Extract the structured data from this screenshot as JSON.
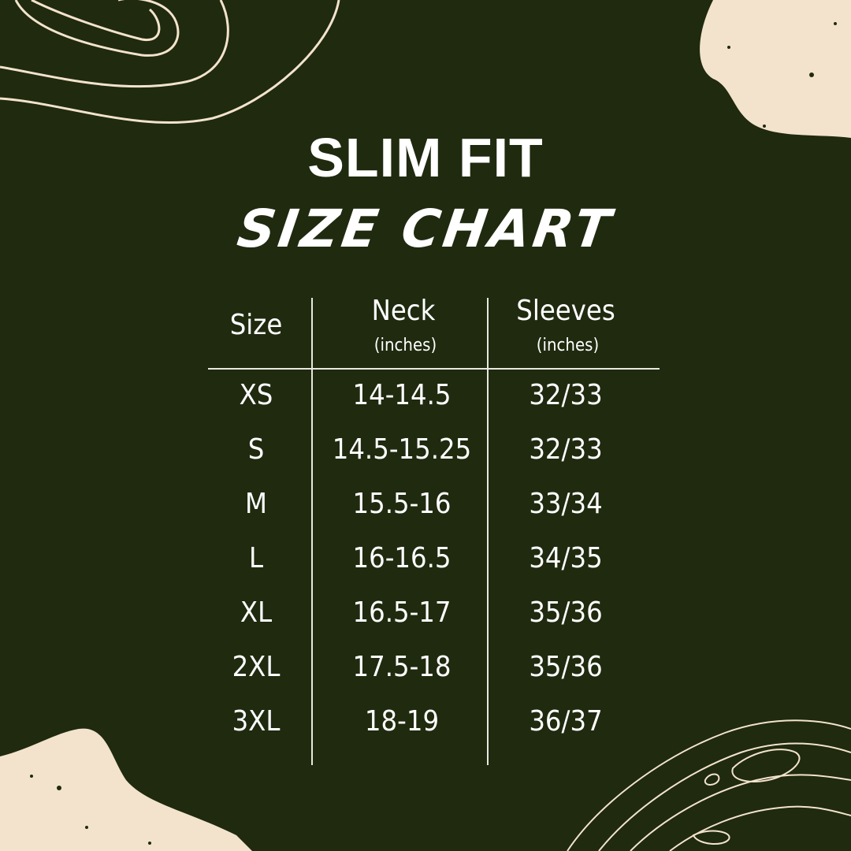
{
  "title": {
    "line1": "SLIM FIT",
    "line2": "SIZE CHART"
  },
  "colors": {
    "background": "#1f2a0f",
    "accent": "#f3e3cc",
    "text": "#ffffff"
  },
  "table": {
    "headers": [
      {
        "label": "Size",
        "unit": ""
      },
      {
        "label": "Neck",
        "unit": "(inches)"
      },
      {
        "label": "Sleeves",
        "unit": "(inches)"
      }
    ],
    "rows": [
      [
        "XS",
        "14-14.5",
        "32/33"
      ],
      [
        "S",
        "14.5-15.25",
        "32/33"
      ],
      [
        "M",
        "15.5-16",
        "33/34"
      ],
      [
        "L",
        "16-16.5",
        "34/35"
      ],
      [
        "XL",
        "16.5-17",
        "35/36"
      ],
      [
        "2XL",
        "17.5-18",
        "35/36"
      ],
      [
        "3XL",
        "18-19",
        "36/37"
      ]
    ]
  }
}
